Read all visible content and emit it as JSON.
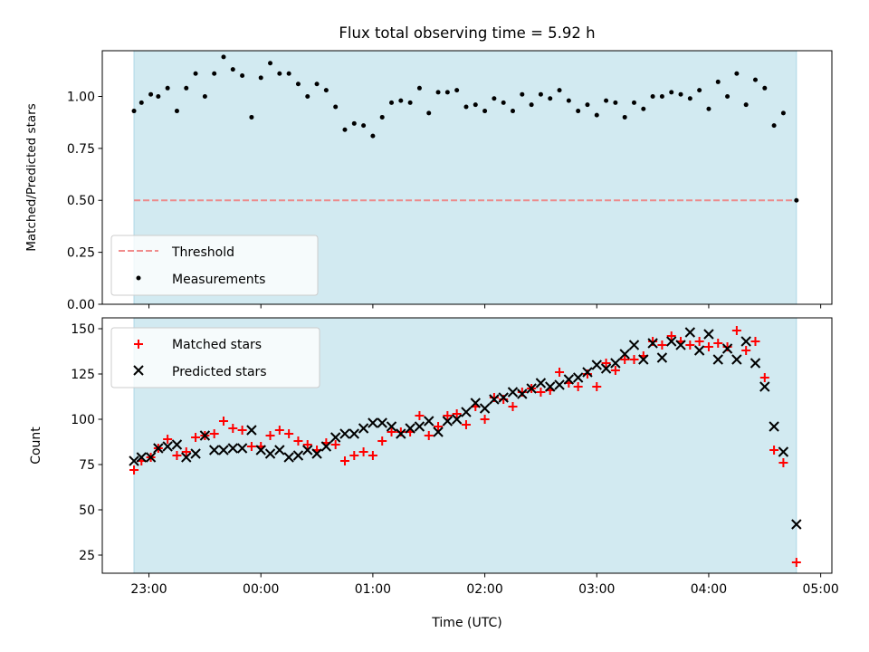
{
  "chart_data": [
    {
      "type": "scatter",
      "title": "Flux total observing time = 5.92 h",
      "ylabel": "Matched/Predicted stars",
      "xlabel": "",
      "xlim": [
        "22:35",
        "05:06"
      ],
      "ylim": [
        0.0,
        1.22
      ],
      "x_tick_labels": [
        "23:00",
        "00:00",
        "01:00",
        "02:00",
        "03:00",
        "04:00",
        "05:00"
      ],
      "y_ticks": [
        0.0,
        0.25,
        0.5,
        0.75,
        1.0
      ],
      "y_tick_labels": [
        "0.00",
        "0.25",
        "0.50",
        "0.75",
        "1.00"
      ],
      "shaded_region": {
        "x_start": "22:52",
        "x_end": "04:47",
        "color": "#add8e6"
      },
      "legend_position": "lower-left",
      "series": [
        {
          "name": "Threshold",
          "kind": "line",
          "style": "dashed",
          "color": "#f08080",
          "x": [
            "22:52",
            "04:47"
          ],
          "y": [
            0.5,
            0.5
          ]
        },
        {
          "name": "Measurements",
          "kind": "points",
          "marker": "dot",
          "color": "#000000",
          "x": [
            "22:52",
            "22:56",
            "23:01",
            "23:05",
            "23:10",
            "23:15",
            "23:20",
            "23:25",
            "23:30",
            "23:35",
            "23:40",
            "23:45",
            "23:50",
            "23:55",
            "00:00",
            "00:05",
            "00:10",
            "00:15",
            "00:20",
            "00:25",
            "00:30",
            "00:35",
            "00:40",
            "00:45",
            "00:50",
            "00:55",
            "01:00",
            "01:05",
            "01:10",
            "01:15",
            "01:20",
            "01:25",
            "01:30",
            "01:35",
            "01:40",
            "01:45",
            "01:50",
            "01:55",
            "02:00",
            "02:05",
            "02:10",
            "02:15",
            "02:20",
            "02:25",
            "02:30",
            "02:35",
            "02:40",
            "02:45",
            "02:50",
            "02:55",
            "03:00",
            "03:05",
            "03:10",
            "03:15",
            "03:20",
            "03:25",
            "03:30",
            "03:35",
            "03:40",
            "03:45",
            "03:50",
            "03:55",
            "04:00",
            "04:05",
            "04:10",
            "04:15",
            "04:20",
            "04:25",
            "04:30",
            "04:35",
            "04:40",
            "04:47"
          ],
          "y": [
            0.93,
            0.97,
            1.01,
            1.0,
            1.04,
            0.93,
            1.04,
            1.11,
            1.0,
            1.11,
            1.19,
            1.13,
            1.1,
            0.9,
            1.09,
            1.16,
            1.11,
            1.11,
            1.06,
            1.0,
            1.06,
            1.03,
            0.95,
            0.84,
            0.87,
            0.86,
            0.81,
            0.9,
            0.97,
            0.98,
            0.97,
            1.04,
            0.92,
            1.02,
            1.02,
            1.03,
            0.95,
            0.96,
            0.93,
            0.99,
            0.97,
            0.93,
            1.01,
            0.96,
            1.01,
            0.99,
            1.03,
            0.98,
            0.93,
            0.96,
            0.91,
            0.98,
            0.97,
            0.9,
            0.97,
            0.94,
            1.0,
            1.0,
            1.02,
            1.01,
            0.99,
            1.03,
            0.94,
            1.07,
            1.0,
            1.11,
            0.96,
            1.08,
            1.04,
            0.86,
            0.92,
            0.5
          ]
        }
      ]
    },
    {
      "type": "scatter",
      "title": "",
      "xlabel": "Time (UTC)",
      "ylabel": "Count",
      "xlim": [
        "22:35",
        "05:06"
      ],
      "ylim": [
        15,
        156
      ],
      "x_tick_labels": [
        "23:00",
        "00:00",
        "01:00",
        "02:00",
        "03:00",
        "04:00",
        "05:00"
      ],
      "y_ticks": [
        25,
        50,
        75,
        100,
        125,
        150
      ],
      "y_tick_labels": [
        "25",
        "50",
        "75",
        "100",
        "125",
        "150"
      ],
      "shaded_region": {
        "x_start": "22:52",
        "x_end": "04:47",
        "color": "#add8e6"
      },
      "legend_position": "upper-left",
      "series": [
        {
          "name": "Matched stars",
          "kind": "points",
          "marker": "plus",
          "color": "#ff0000",
          "x": [
            "22:52",
            "22:56",
            "23:01",
            "23:05",
            "23:10",
            "23:15",
            "23:20",
            "23:25",
            "23:30",
            "23:35",
            "23:40",
            "23:45",
            "23:50",
            "23:55",
            "00:00",
            "00:05",
            "00:10",
            "00:15",
            "00:20",
            "00:25",
            "00:30",
            "00:35",
            "00:40",
            "00:45",
            "00:50",
            "00:55",
            "01:00",
            "01:05",
            "01:10",
            "01:15",
            "01:20",
            "01:25",
            "01:30",
            "01:35",
            "01:40",
            "01:45",
            "01:50",
            "01:55",
            "02:00",
            "02:05",
            "02:10",
            "02:15",
            "02:20",
            "02:25",
            "02:30",
            "02:35",
            "02:40",
            "02:45",
            "02:50",
            "02:55",
            "03:00",
            "03:05",
            "03:10",
            "03:15",
            "03:20",
            "03:25",
            "03:30",
            "03:35",
            "03:40",
            "03:45",
            "03:50",
            "03:55",
            "04:00",
            "04:05",
            "04:10",
            "04:15",
            "04:20",
            "04:25",
            "04:30",
            "04:35",
            "04:40",
            "04:47"
          ],
          "y": [
            72,
            77,
            79,
            84,
            89,
            80,
            82,
            90,
            91,
            92,
            99,
            95,
            94,
            85,
            85,
            91,
            94,
            92,
            88,
            86,
            83,
            87,
            86,
            77,
            80,
            82,
            80,
            88,
            93,
            93,
            93,
            102,
            91,
            96,
            102,
            103,
            97,
            107,
            100,
            112,
            111,
            107,
            115,
            117,
            115,
            116,
            126,
            120,
            118,
            125,
            118,
            131,
            127,
            133,
            133,
            135,
            143,
            141,
            146,
            143,
            141,
            143,
            140,
            142,
            140,
            149,
            138,
            143,
            123,
            83,
            76,
            21
          ]
        },
        {
          "name": "Predicted stars",
          "kind": "points",
          "marker": "cross",
          "color": "#000000",
          "x": [
            "22:52",
            "22:56",
            "23:01",
            "23:05",
            "23:10",
            "23:15",
            "23:20",
            "23:25",
            "23:30",
            "23:35",
            "23:40",
            "23:45",
            "23:50",
            "23:55",
            "00:00",
            "00:05",
            "00:10",
            "00:15",
            "00:20",
            "00:25",
            "00:30",
            "00:35",
            "00:40",
            "00:45",
            "00:50",
            "00:55",
            "01:00",
            "01:05",
            "01:10",
            "01:15",
            "01:20",
            "01:25",
            "01:30",
            "01:35",
            "01:40",
            "01:45",
            "01:50",
            "01:55",
            "02:00",
            "02:05",
            "02:10",
            "02:15",
            "02:20",
            "02:25",
            "02:30",
            "02:35",
            "02:40",
            "02:45",
            "02:50",
            "02:55",
            "03:00",
            "03:05",
            "03:10",
            "03:15",
            "03:20",
            "03:25",
            "03:30",
            "03:35",
            "03:40",
            "03:45",
            "03:50",
            "03:55",
            "04:00",
            "04:05",
            "04:10",
            "04:15",
            "04:20",
            "04:25",
            "04:30",
            "04:35",
            "04:40",
            "04:47"
          ],
          "y": [
            77,
            79,
            79,
            84,
            85,
            86,
            79,
            81,
            91,
            83,
            83,
            84,
            84,
            94,
            83,
            81,
            83,
            79,
            80,
            83,
            81,
            85,
            90,
            92,
            92,
            95,
            98,
            98,
            96,
            92,
            95,
            96,
            99,
            93,
            99,
            100,
            104,
            109,
            106,
            111,
            112,
            115,
            114,
            117,
            120,
            118,
            119,
            122,
            123,
            126,
            130,
            128,
            131,
            136,
            141,
            133,
            142,
            134,
            143,
            141,
            148,
            138,
            147,
            133,
            139,
            133,
            143,
            131,
            118,
            96,
            82,
            42
          ]
        }
      ]
    }
  ]
}
